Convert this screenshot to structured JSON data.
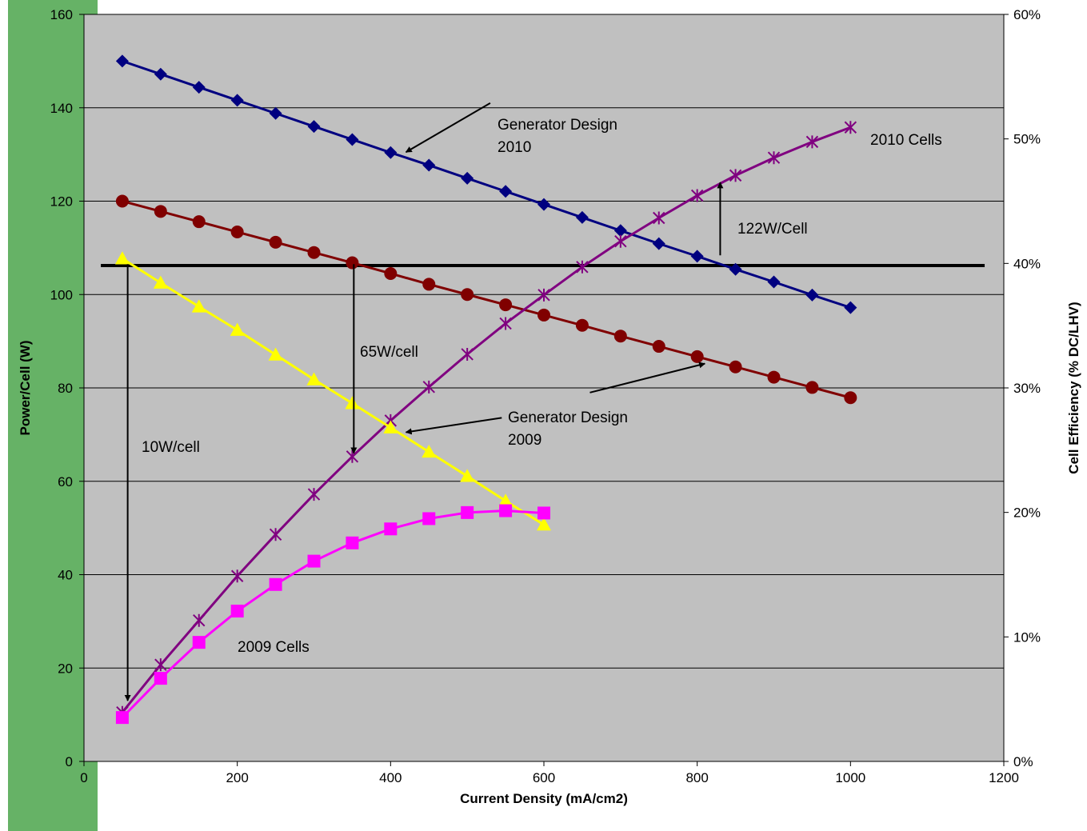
{
  "chart_data": {
    "type": "line",
    "title": "",
    "xlabel": "Current Density (mA/cm2)",
    "ylabel": "Power/Cell (W)",
    "y2label": "Cell Efficiency (% DC/LHV)",
    "xlim": [
      0,
      1200
    ],
    "ylim": [
      0,
      160
    ],
    "y2lim": [
      0,
      0.6
    ],
    "x_ticks": [
      0,
      200,
      400,
      600,
      800,
      1000,
      1200
    ],
    "y_ticks": [
      0,
      20,
      40,
      60,
      80,
      100,
      120,
      140,
      160
    ],
    "y2_ticks": [
      "0%",
      "10%",
      "20%",
      "30%",
      "40%",
      "50%",
      "60%"
    ],
    "grid": "horizontal",
    "background_color": "#c0c0c0",
    "series": [
      {
        "key": "gen2010",
        "axis": "left",
        "color": "#000080",
        "marker": "diamond",
        "x": [
          50,
          100,
          150,
          200,
          250,
          300,
          350,
          400,
          450,
          500,
          550,
          600,
          650,
          700,
          750,
          800,
          850,
          900,
          950,
          1000
        ],
        "values": [
          150,
          147.2,
          144.4,
          141.6,
          138.8,
          136,
          133.2,
          130.4,
          127.7,
          124.9,
          122.1,
          119.3,
          116.5,
          113.7,
          110.9,
          108.2,
          105.4,
          102.7,
          99.9,
          97.2
        ]
      },
      {
        "key": "gen2009",
        "axis": "left",
        "color": "#800000",
        "marker": "circle",
        "x": [
          50,
          100,
          150,
          200,
          250,
          300,
          350,
          400,
          450,
          500,
          550,
          600,
          650,
          700,
          750,
          800,
          850,
          900,
          950,
          1000
        ],
        "values": [
          120,
          117.8,
          115.6,
          113.4,
          111.2,
          109,
          106.8,
          104.5,
          102.2,
          100,
          97.8,
          95.6,
          93.4,
          91.1,
          88.9,
          86.7,
          84.5,
          82.3,
          80.1,
          77.9
        ]
      },
      {
        "key": "cells2010",
        "axis": "left",
        "color": "#800080",
        "marker": "star",
        "x": [
          50,
          100,
          150,
          200,
          250,
          300,
          350,
          400,
          450,
          500,
          550,
          600,
          650,
          700,
          750,
          800,
          850,
          900,
          950,
          1000
        ],
        "values": [
          10.5,
          20.7,
          30.2,
          39.7,
          48.6,
          57.2,
          65.3,
          73,
          80.2,
          87.2,
          93.8,
          99.9,
          105.9,
          111.4,
          116.4,
          121.2,
          125.5,
          129.3,
          132.7,
          135.8
        ]
      },
      {
        "key": "yellow",
        "axis": "left",
        "color": "#ffff00",
        "marker": "triangle",
        "x": [
          50,
          100,
          150,
          200,
          250,
          300,
          350,
          400,
          450,
          500,
          550,
          600
        ],
        "values": [
          107.7,
          102.5,
          97.4,
          92.4,
          87.1,
          81.8,
          76.7,
          71.5,
          66.3,
          61.1,
          55.8,
          50.7
        ]
      },
      {
        "key": "cells2009",
        "axis": "left",
        "color": "#ff00ff",
        "marker": "square",
        "x": [
          50,
          100,
          150,
          200,
          250,
          300,
          350,
          400,
          450,
          500,
          550,
          600
        ],
        "values": [
          9.4,
          17.8,
          25.5,
          32.2,
          37.9,
          42.9,
          46.8,
          49.8,
          52,
          53.3,
          53.7,
          53.2
        ]
      }
    ],
    "reference_line": {
      "y": 106.2,
      "color": "#000000",
      "x_from": 22,
      "x_to": 1175
    },
    "annotations": {
      "gen2010_label": [
        "Generator Design",
        "2010"
      ],
      "gen2009_label": [
        "Generator Design",
        "2009"
      ],
      "cells2010_label": "2010 Cells",
      "cells2009_label": "2009 Cells",
      "arrow_122": "122W/Cell",
      "arrow_65": "65W/cell",
      "arrow_10": "10W/cell"
    }
  }
}
